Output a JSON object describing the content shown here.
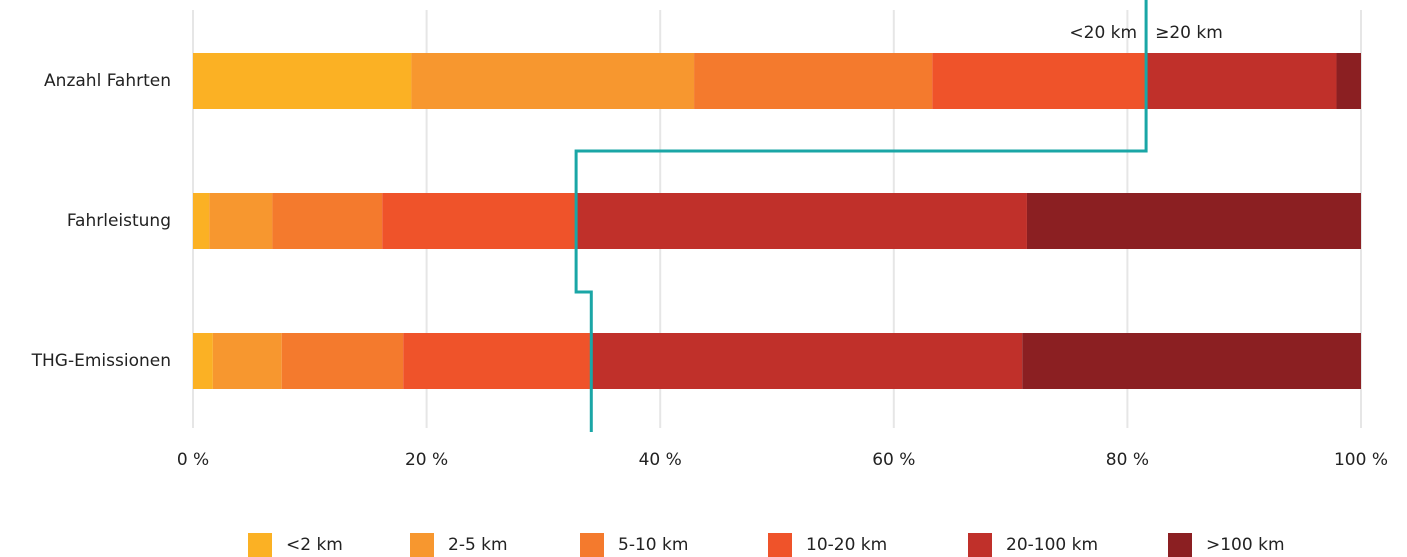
{
  "chart_data": {
    "type": "bar",
    "orientation": "horizontal",
    "stacked": true,
    "categories": [
      "Anzahl Fahrten",
      "Fahrleistung",
      "THG-Emissionen"
    ],
    "series": [
      {
        "name": "<2 km",
        "color": "#fbb124",
        "values": [
          18.7,
          1.4,
          1.7
        ]
      },
      {
        "name": "2-5 km",
        "color": "#f7972f",
        "values": [
          24.2,
          5.4,
          5.9
        ]
      },
      {
        "name": "5-10 km",
        "color": "#f47a2d",
        "values": [
          20.4,
          9.4,
          10.4
        ]
      },
      {
        "name": "10-20 km",
        "color": "#ef532a",
        "values": [
          18.3,
          16.6,
          16.2
        ]
      },
      {
        "name": "20-100 km",
        "color": "#c0302a",
        "values": [
          16.3,
          38.6,
          36.8
        ]
      },
      {
        "name": ">100 km",
        "color": "#8b1f22",
        "values": [
          2.1,
          28.6,
          29.0
        ]
      }
    ],
    "xlim": [
      0,
      100
    ],
    "xticks": [
      0,
      20,
      40,
      60,
      80,
      100
    ],
    "xtick_labels": [
      "0 %",
      "20 %",
      "40 %",
      "60 %",
      "80 %",
      "100 %"
    ],
    "grid": "vertical",
    "legend_position": "bottom",
    "annotation": {
      "color": "#1aa6a6",
      "label_left": "<20 km",
      "label_right": "≥20 km",
      "boundary_values": [
        81.6,
        32.8,
        34.1
      ]
    }
  }
}
